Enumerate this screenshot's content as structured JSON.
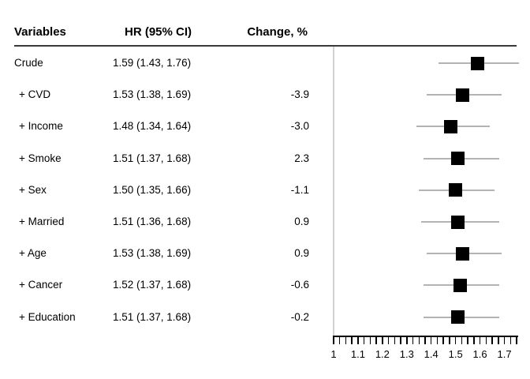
{
  "header": {
    "variables_label": "Variables",
    "hr_label": "HR (95% CI)",
    "change_label": "Change, %"
  },
  "rows": [
    {
      "variable": "Crude",
      "hr_ci": "1.59 (1.43, 1.76)",
      "change": "",
      "indent": false
    },
    {
      "variable": "+ CVD",
      "hr_ci": "1.53 (1.38, 1.69)",
      "change": "-3.9",
      "indent": true
    },
    {
      "variable": "+ Income",
      "hr_ci": "1.48 (1.34, 1.64)",
      "change": "-3.0",
      "indent": true
    },
    {
      "variable": "+ Smoke",
      "hr_ci": "1.51 (1.37, 1.68)",
      "change": "2.3",
      "indent": true
    },
    {
      "variable": "+ Sex",
      "hr_ci": "1.50 (1.35, 1.66)",
      "change": "-1.1",
      "indent": true
    },
    {
      "variable": "+ Married",
      "hr_ci": "1.51 (1.36, 1.68)",
      "change": "0.9",
      "indent": true
    },
    {
      "variable": "+ Age",
      "hr_ci": "1.53 (1.38, 1.69)",
      "change": "0.9",
      "indent": true
    },
    {
      "variable": "+ Cancer",
      "hr_ci": "1.52 (1.37, 1.68)",
      "change": "-0.6",
      "indent": true
    },
    {
      "variable": "+ Education",
      "hr_ci": "1.51 (1.37, 1.68)",
      "change": "-0.2",
      "indent": true
    }
  ],
  "chart_data": {
    "type": "scatter",
    "variant": "forest-plot",
    "orientation": "horizontal",
    "title": "",
    "categories": [
      "Crude",
      "+ CVD",
      "+ Income",
      "+ Smoke",
      "+ Sex",
      "+ Married",
      "+ Age",
      "+ Cancer",
      "+ Education"
    ],
    "series": [
      {
        "name": "HR",
        "values": [
          1.59,
          1.53,
          1.48,
          1.51,
          1.5,
          1.51,
          1.53,
          1.52,
          1.51
        ]
      },
      {
        "name": "CI lower",
        "values": [
          1.43,
          1.38,
          1.34,
          1.37,
          1.35,
          1.36,
          1.38,
          1.37,
          1.37
        ]
      },
      {
        "name": "CI upper",
        "values": [
          1.76,
          1.69,
          1.64,
          1.68,
          1.66,
          1.68,
          1.69,
          1.68,
          1.68
        ]
      },
      {
        "name": "Change %",
        "values": [
          null,
          -3.9,
          -3.0,
          2.3,
          -1.1,
          0.9,
          0.9,
          -0.6,
          -0.2
        ]
      }
    ],
    "xlabel": "",
    "xlim": [
      1.0,
      1.75
    ],
    "x_tick_labels": [
      "1",
      "1.1",
      "1.2",
      "1.3",
      "1.4",
      "1.5",
      "1.6",
      "1.7"
    ],
    "x_label_step": 0.1,
    "minor_tick_step": 0.025,
    "reference_line_x": 1.0,
    "marker": "filled-square",
    "grid": false,
    "legend": "none"
  },
  "colors": {
    "background": "#ffffff",
    "text": "#000000",
    "header_rule": "#3a3a3a",
    "ci_line": "#b3b3b3",
    "reference_line": "#d2d2d2",
    "marker": "#000000",
    "axis": "#000000"
  }
}
